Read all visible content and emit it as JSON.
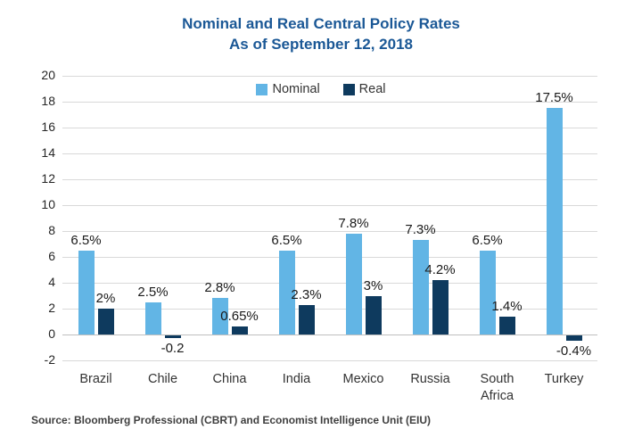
{
  "title": {
    "line1": "Nominal and Real Central Policy Rates",
    "line2": "As of September 12, 2018"
  },
  "source": "Source: Bloomberg Professional (CBRT) and Economist Intelligence Unit (EIU)",
  "colors": {
    "title_text": "#1B5896",
    "nominal": "#62B5E5",
    "real": "#0E3A5E",
    "gridline": "#D9D9D9",
    "zero_line": "#BFBFBF",
    "axis_text": "#262626",
    "data_label_text": "#1A1A1A",
    "source_text": "#3F3F3F"
  },
  "chart_data": {
    "type": "bar",
    "title": "Nominal and Real Central Policy Rates",
    "subtitle": "As of September 12, 2018",
    "categories": [
      "Brazil",
      "Chile",
      "China",
      "India",
      "Mexico",
      "Russia",
      "South Africa",
      "Turkey"
    ],
    "series": [
      {
        "name": "Nominal",
        "color": "#62B5E5",
        "values": [
          6.5,
          2.5,
          2.8,
          6.5,
          7.8,
          7.3,
          6.5,
          17.5
        ],
        "labels": [
          "6.5%",
          "2.5%",
          "2.8%",
          "6.5%",
          "7.8%",
          "7.3%",
          "6.5%",
          "17.5%"
        ]
      },
      {
        "name": "Real",
        "color": "#0E3A5E",
        "values": [
          2,
          -0.2,
          0.65,
          2.3,
          3,
          4.2,
          1.4,
          -0.4
        ],
        "labels": [
          "2%",
          "-0.2",
          "0.65%",
          "2.3%",
          "3%",
          "4.2%",
          "1.4%",
          "-0.4%"
        ]
      }
    ],
    "y_ticks": [
      20,
      18,
      16,
      14,
      12,
      10,
      8,
      6,
      4,
      2,
      0,
      -2
    ],
    "ylim": [
      -2,
      20
    ],
    "grid": "horizontal",
    "legend_position": "top-center",
    "xlabel": "",
    "ylabel": ""
  }
}
